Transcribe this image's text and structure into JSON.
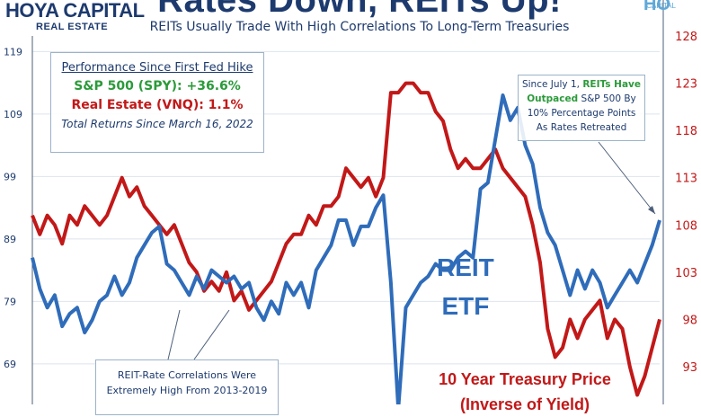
{
  "header": {
    "logo_line1": "HOYA CAPITAL",
    "logo_line2": "REAL ESTATE",
    "title": "Rates Down, REITs Up!",
    "subtitle": "REITs Usually Trade With High Correlations To Long-Term Treasuries",
    "corner_logo": "HO",
    "corner_logo_sub": "CAPITAL"
  },
  "performance_box": {
    "heading": "Performance Since First Fed Hike",
    "line_spy": "S&P 500 (SPY): +36.6%",
    "line_vnq": "Real Estate (VNQ): 1.1%",
    "footnote": "Total Returns Since March 16, 2022"
  },
  "note_box": {
    "pre": "Since July 1, ",
    "highlight1": "REITs Have",
    "highlight2": "Outpaced",
    "post1": " S&P 500 By",
    "post2": "10% Percentage Points",
    "post3": "As Rates Retreated"
  },
  "correlation_box": {
    "line1": "REIT-Rate Correlations Were",
    "line2": "Extremely High From 2013-2019"
  },
  "labels": {
    "reit_line1": "REIT",
    "reit_line2": "ETF",
    "treasury_line1": "10 Year Treasury Price",
    "treasury_line2": "(Inverse of Yield)"
  },
  "colors": {
    "reit": "#2f6cba",
    "treasury": "#c21818",
    "green": "#2b9a3a",
    "navy": "#1d3a6e"
  },
  "chart_data": {
    "type": "line",
    "title": "Rates Down, REITs Up!",
    "subtitle": "REITs Usually Trade With High Correlations To Long-Term Treasuries",
    "left_axis": {
      "ticks": [
        69,
        79,
        89,
        99,
        109,
        119
      ],
      "range": [
        62.5,
        121.5
      ]
    },
    "right_axis": {
      "ticks": [
        93,
        98,
        103,
        108,
        113,
        118,
        123,
        128
      ],
      "range": [
        89,
        128
      ]
    },
    "series": [
      {
        "name": "REIT ETF",
        "axis": "left",
        "values": [
          86,
          81,
          78,
          80,
          75,
          77,
          78,
          74,
          76,
          79,
          80,
          83,
          80,
          82,
          86,
          88,
          90,
          91,
          85,
          84,
          82,
          80,
          83,
          81,
          84,
          83,
          82,
          83,
          81,
          82,
          78,
          76,
          79,
          77,
          82,
          80,
          82,
          78,
          84,
          86,
          88,
          92,
          92,
          88,
          91,
          91,
          94,
          96,
          82,
          60,
          78,
          80,
          82,
          83,
          85,
          84,
          84,
          86,
          87,
          86,
          97,
          98,
          105,
          112,
          108,
          110,
          104,
          101,
          94,
          90,
          88,
          84,
          80,
          84,
          81,
          84,
          82,
          78,
          80,
          82,
          84,
          82,
          85,
          88,
          92
        ]
      },
      {
        "name": "10 Year Treasury Price",
        "axis": "right",
        "values": [
          109,
          107,
          109,
          108,
          106,
          109,
          108,
          110,
          109,
          108,
          109,
          111,
          113,
          111,
          112,
          110,
          109,
          108,
          107,
          108,
          106,
          104,
          103,
          101,
          102,
          101,
          103,
          100,
          101,
          99,
          100,
          101,
          102,
          104,
          106,
          107,
          107,
          109,
          108,
          110,
          110,
          111,
          114,
          113,
          112,
          113,
          111,
          113,
          122,
          122,
          123,
          123,
          122,
          122,
          120,
          119,
          116,
          114,
          115,
          114,
          114,
          115,
          116,
          114,
          113,
          112,
          111,
          108,
          104,
          97,
          94,
          95,
          98,
          96,
          98,
          99,
          100,
          96,
          98,
          97,
          93,
          90,
          92,
          95,
          98
        ]
      }
    ]
  }
}
